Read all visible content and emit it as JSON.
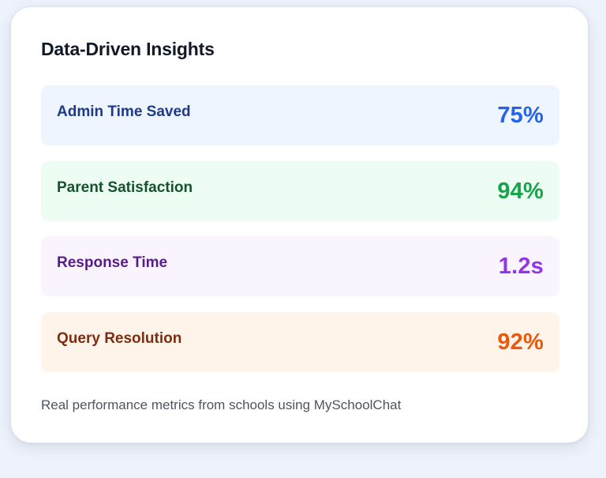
{
  "card": {
    "title": "Data-Driven Insights",
    "footnote": "Real performance metrics from schools using MySchoolChat"
  },
  "metrics": [
    {
      "label": "Admin Time Saved",
      "value": "75%",
      "bg": "#eef5ff",
      "label_color": "#1e3a8a",
      "value_color": "#2563eb"
    },
    {
      "label": "Parent Satisfaction",
      "value": "94%",
      "bg": "#eefdf3",
      "label_color": "#14532d",
      "value_color": "#16a34a"
    },
    {
      "label": "Response Time",
      "value": "1.2s",
      "bg": "#faf4ff",
      "label_color": "#581c87",
      "value_color": "#9333ea"
    },
    {
      "label": "Query Resolution",
      "value": "92%",
      "bg": "#fff4ea",
      "label_color": "#7c2d12",
      "value_color": "#ea580c"
    }
  ]
}
